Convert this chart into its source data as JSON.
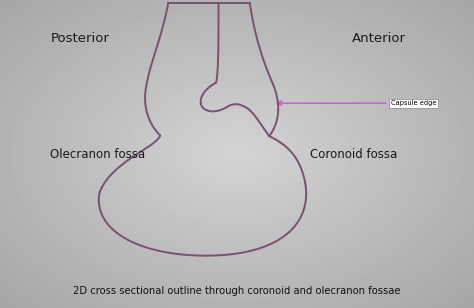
{
  "title": "2D cross sectional outline through coronoid and olecranon fossae",
  "label_posterior": "Posterior",
  "label_anterior": "Anterior",
  "label_olecranon": "Olecranon fossa",
  "label_coronoid": "Coronoid fossa",
  "label_capsule": "Capsule edge",
  "outline_color": "#7b5070",
  "arrow_color": "#cc55cc",
  "text_color": "#1a1a1a",
  "title_color": "#111111"
}
